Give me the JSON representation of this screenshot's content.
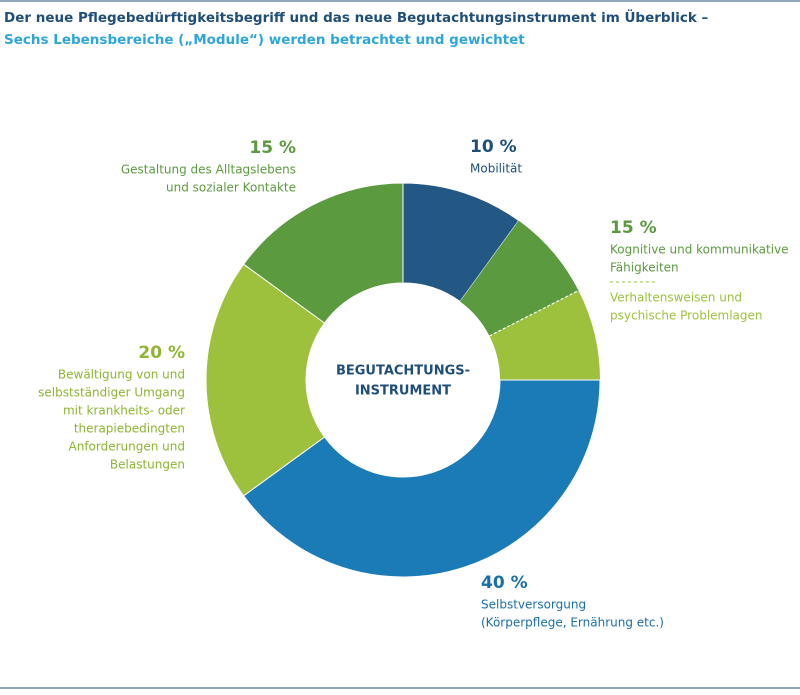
{
  "chart_data": {
    "type": "donut",
    "title": "Der neue Pflegebedürftigkeitsbegriff und das neue Begutachtungsinstrument im Überblick –",
    "subtitle": "Sechs Lebensbereiche („Module“) werden betrachtet und gewichtet",
    "center_label": [
      "BEGUTACHTUNGS-",
      "INSTRUMENT"
    ],
    "categories": [
      [
        "Mobilität"
      ],
      [
        "Kognitive und kommunikative",
        "Fähigkeiten"
      ],
      [
        "Selbstversorgung",
        "(Körperpflege, Ernährung etc.)"
      ],
      [
        "Bewältigung von und",
        "selbstständiger Umgang",
        "mit krankheits- oder",
        "therapiebedingten",
        "Anforderungen und",
        "Belastungen"
      ],
      [
        "Gestaltung des Alltagslebens",
        "und sozialer Kontakte"
      ]
    ],
    "sub_labels": [
      null,
      [
        "Verhaltensweisen und",
        "psychische Problemlagen"
      ],
      null,
      null,
      null
    ],
    "values": [
      10,
      15,
      40,
      20,
      15
    ],
    "value_labels": [
      "10 %",
      "15 %",
      "40 %",
      "20 %",
      "15 %"
    ],
    "colors": [
      "#235784",
      "#5b9a3f",
      "#1a7bb7",
      "#9dc13d",
      "#5b9a3f"
    ],
    "sub_colors": [
      null,
      "#9dc13d",
      null,
      null,
      null
    ],
    "label_colors": [
      "#1f4e79",
      "#5b9a3f",
      "#1a6fa8",
      "#8db432",
      "#5b9a3f"
    ]
  }
}
